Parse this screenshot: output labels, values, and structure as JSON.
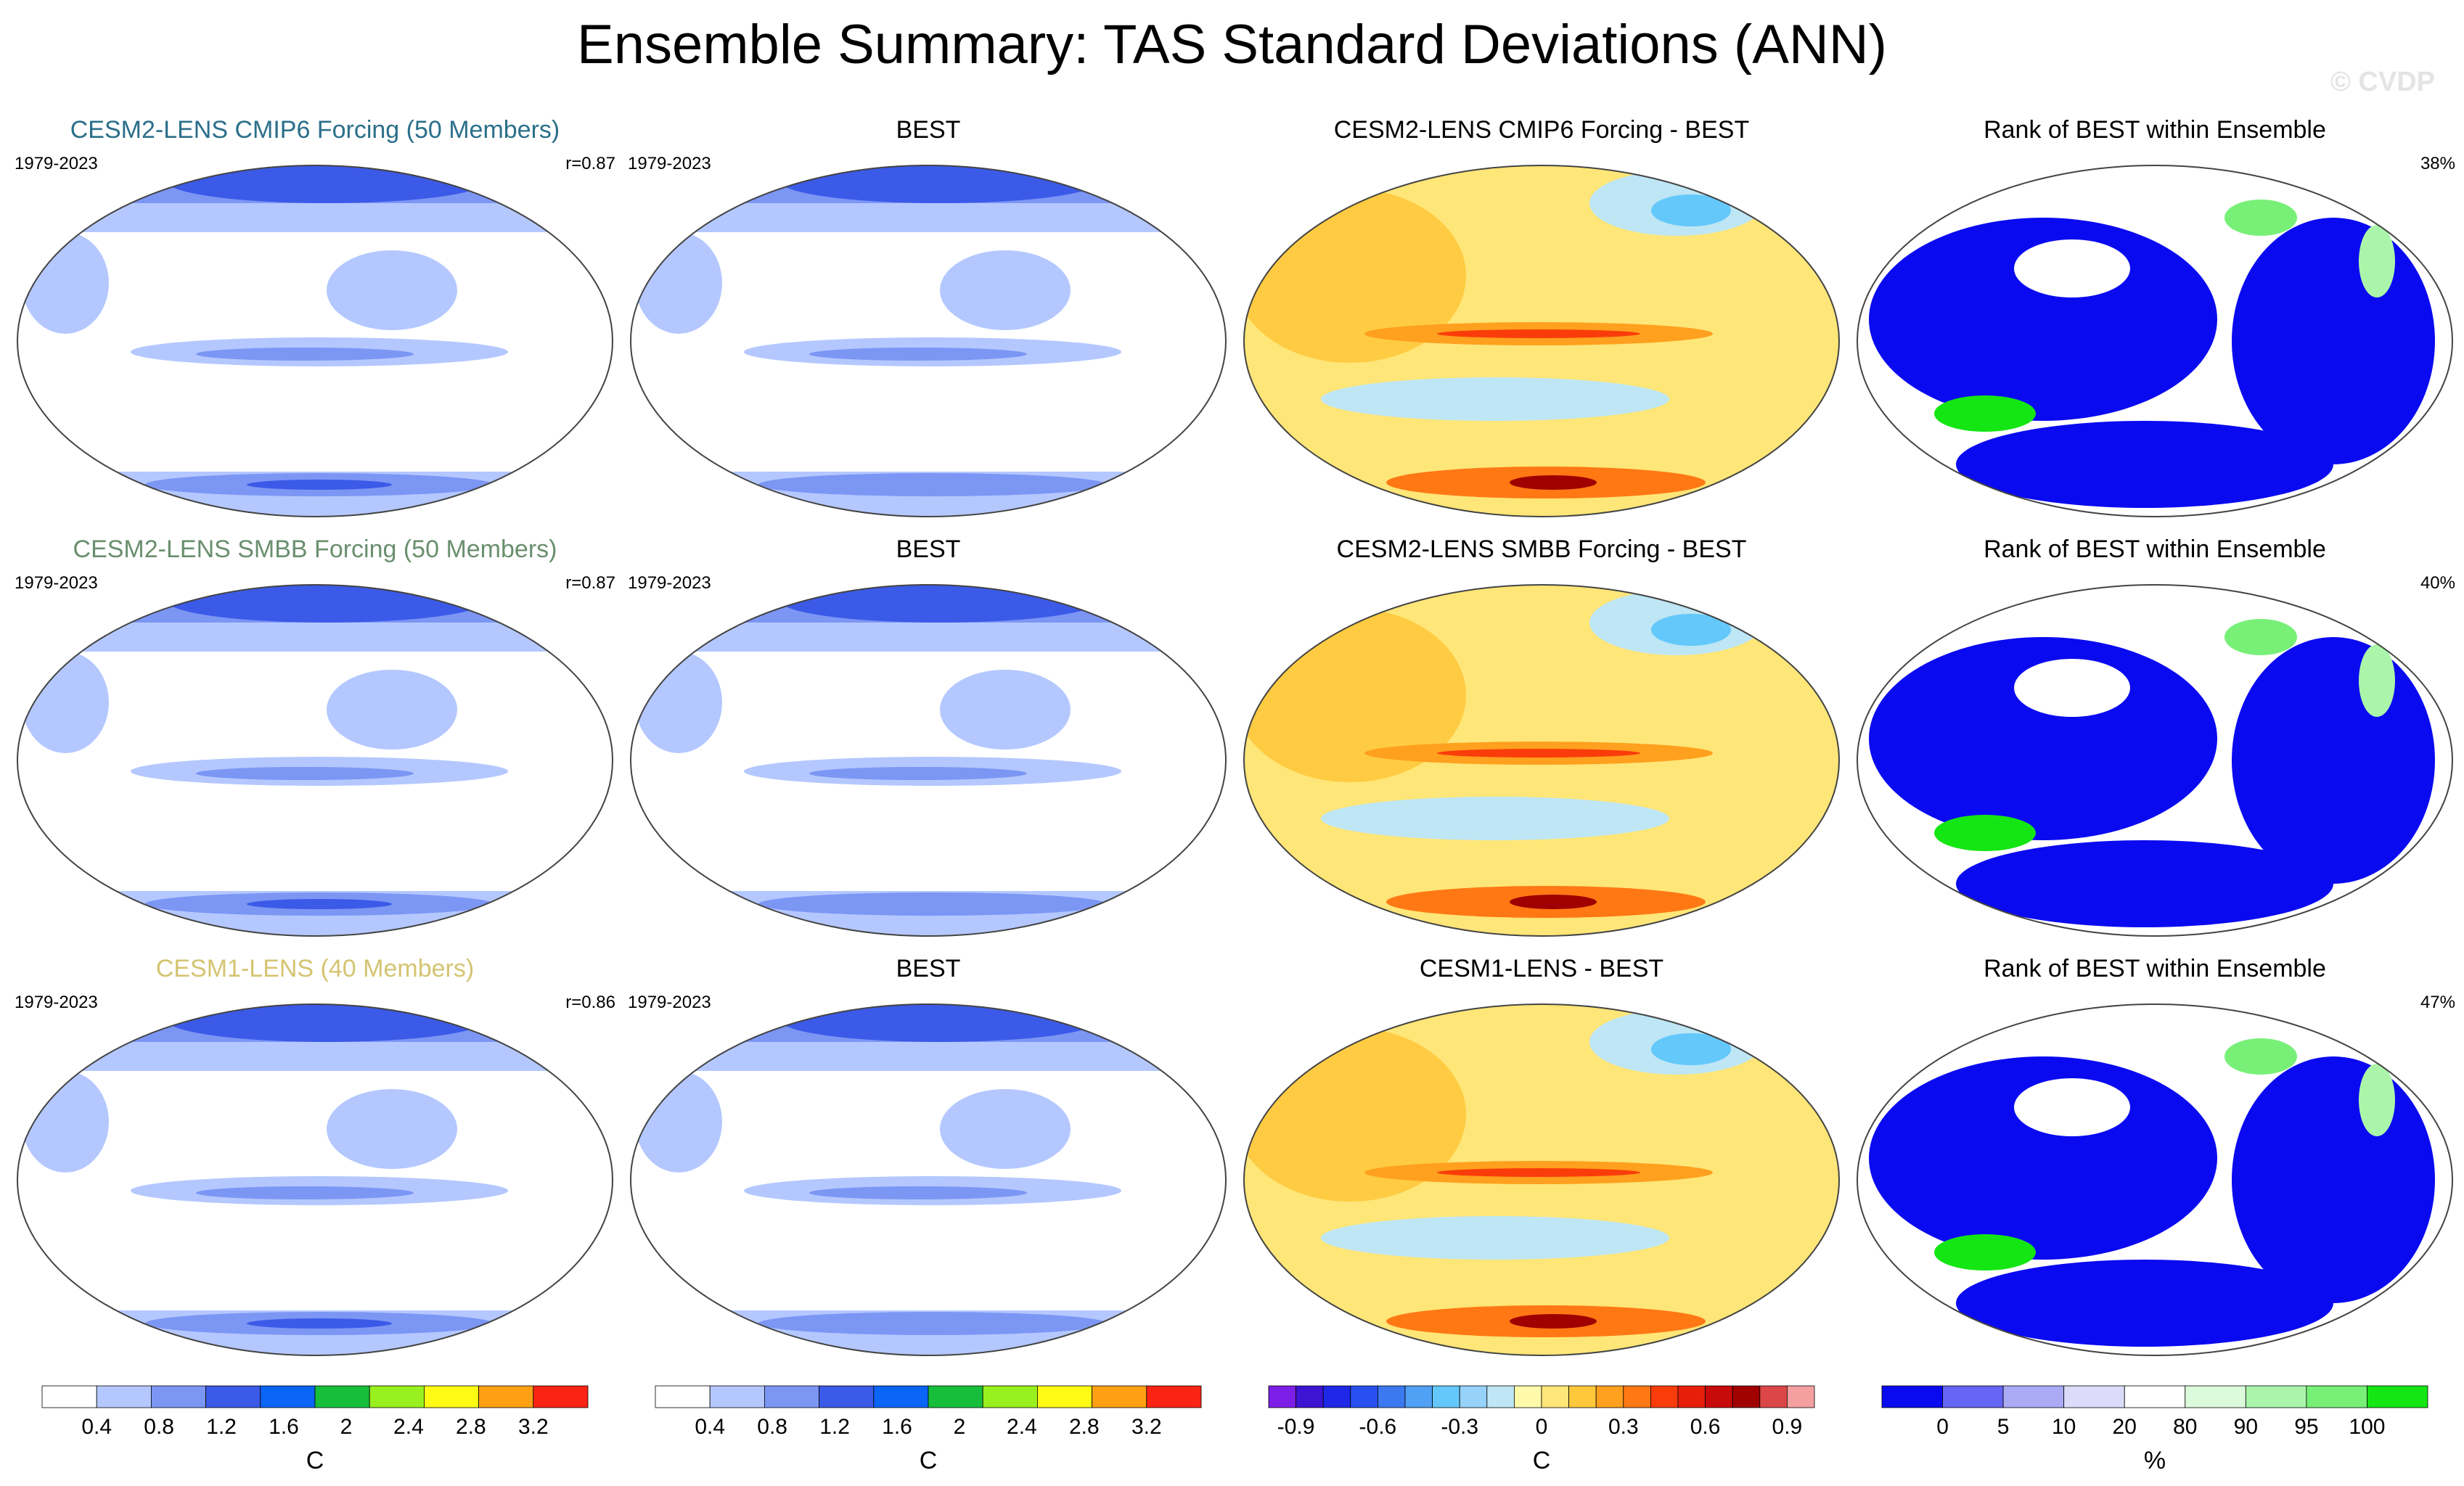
{
  "title": "Ensemble Summary: TAS Standard Deviations (ANN)",
  "watermark": "© CVDP",
  "rows": [
    {
      "model_title": "CESM2-LENS CMIP6 Forcing (50 Members)",
      "model_title_color": "#2b6f8a",
      "period": "1979-2023",
      "pattern_corr": "r=0.87",
      "obs_title": "BEST",
      "obs_period": "1979-2023",
      "diff_title": "CESM2-LENS CMIP6 Forcing - BEST",
      "rank_title": "Rank of BEST within Ensemble",
      "rank_pct": "38%"
    },
    {
      "model_title": "CESM2-LENS SMBB Forcing (50 Members)",
      "model_title_color": "#6a8f6e",
      "period": "1979-2023",
      "pattern_corr": "r=0.87",
      "obs_title": "BEST",
      "obs_period": "1979-2023",
      "diff_title": "CESM2-LENS SMBB Forcing - BEST",
      "rank_title": "Rank of BEST within Ensemble",
      "rank_pct": "40%"
    },
    {
      "model_title": "CESM1-LENS (40 Members)",
      "model_title_color": "#d4c472",
      "period": "1979-2023",
      "pattern_corr": "r=0.86",
      "obs_title": "BEST",
      "obs_period": "1979-2023",
      "diff_title": "CESM1-LENS - BEST",
      "rank_title": "Rank of BEST within Ensemble",
      "rank_pct": "47%"
    }
  ],
  "colorbars": {
    "stddev": {
      "unit": "C",
      "ticks": [
        "0.4",
        "0.8",
        "1.2",
        "1.6",
        "2",
        "2.4",
        "2.8",
        "3.2"
      ],
      "colors": [
        "#ffffff",
        "#b4c8ff",
        "#7c96f4",
        "#3c5ae8",
        "#0a64f5",
        "#16be3c",
        "#98f01e",
        "#fffa14",
        "#ffa014",
        "#fa2314"
      ]
    },
    "diff": {
      "unit": "C",
      "ticks": [
        "-0.9",
        "-0.6",
        "-0.3",
        "0",
        "0.3",
        "0.6",
        "0.9"
      ],
      "colors": [
        "#7d1ee6",
        "#3c14d2",
        "#1e28e6",
        "#2850f0",
        "#3c78f0",
        "#50a0f5",
        "#64c8fa",
        "#96d2fa",
        "#bee6f5",
        "#fffaaa",
        "#ffe678",
        "#ffc83c",
        "#ffa01e",
        "#ff7814",
        "#fa3c0a",
        "#e61e0a",
        "#c80a0a",
        "#a00000",
        "#dc4646",
        "#f5a0a0"
      ]
    },
    "rank": {
      "unit": "%",
      "ticks": [
        "0",
        "5",
        "10",
        "20",
        "80",
        "90",
        "95",
        "100"
      ],
      "colors": [
        "#0a0af0",
        "#6464f5",
        "#aaaaf5",
        "#dcdcfa",
        "#ffffff",
        "#dcfadc",
        "#aaf5aa",
        "#78f078",
        "#14e614"
      ]
    }
  },
  "chart_data": [
    {
      "type": "heatmap",
      "title": "CESM2-LENS CMIP6 Forcing (50 Members)",
      "field": "TAS standard deviation",
      "units": "C",
      "period": "1979-2023",
      "pattern_correlation": 0.87,
      "contour_levels": [
        0.4,
        0.8,
        1.2,
        1.6,
        2,
        2.4,
        2.8,
        3.2
      ]
    },
    {
      "type": "heatmap",
      "title": "BEST",
      "field": "TAS standard deviation",
      "units": "C",
      "period": "1979-2023",
      "contour_levels": [
        0.4,
        0.8,
        1.2,
        1.6,
        2,
        2.4,
        2.8,
        3.2
      ]
    },
    {
      "type": "heatmap",
      "title": "CESM2-LENS CMIP6 Forcing - BEST",
      "units": "C",
      "contour_levels": [
        -1,
        -0.9,
        -0.8,
        -0.7,
        -0.6,
        -0.5,
        -0.4,
        -0.3,
        -0.2,
        -0.1,
        0,
        0.1,
        0.2,
        0.3,
        0.4,
        0.5,
        0.6,
        0.7,
        0.8,
        0.9,
        1
      ]
    },
    {
      "type": "heatmap",
      "title": "Rank of BEST within Ensemble",
      "units": "%",
      "area_percent": 38,
      "levels": [
        0,
        5,
        10,
        20,
        80,
        90,
        95,
        100
      ]
    },
    {
      "type": "heatmap",
      "title": "CESM2-LENS SMBB Forcing (50 Members)",
      "units": "C",
      "period": "1979-2023",
      "pattern_correlation": 0.87
    },
    {
      "type": "heatmap",
      "title": "BEST",
      "units": "C",
      "period": "1979-2023"
    },
    {
      "type": "heatmap",
      "title": "CESM2-LENS SMBB Forcing - BEST",
      "units": "C"
    },
    {
      "type": "heatmap",
      "title": "Rank of BEST within Ensemble",
      "units": "%",
      "area_percent": 40
    },
    {
      "type": "heatmap",
      "title": "CESM1-LENS (40 Members)",
      "units": "C",
      "period": "1979-2023",
      "pattern_correlation": 0.86
    },
    {
      "type": "heatmap",
      "title": "BEST",
      "units": "C",
      "period": "1979-2023"
    },
    {
      "type": "heatmap",
      "title": "CESM1-LENS - BEST",
      "units": "C"
    },
    {
      "type": "heatmap",
      "title": "Rank of BEST within Ensemble",
      "units": "%",
      "area_percent": 47
    }
  ]
}
